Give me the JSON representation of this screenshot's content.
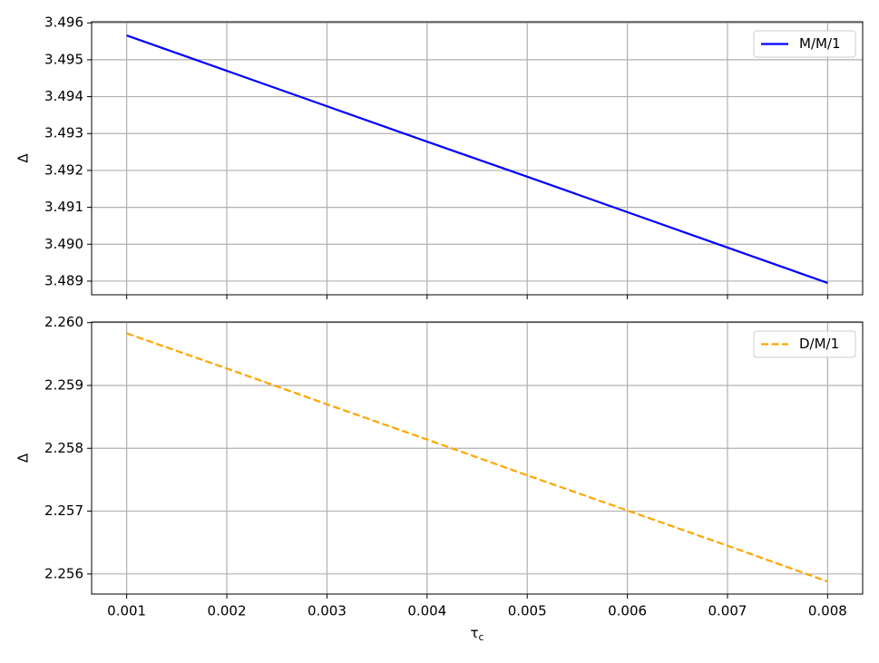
{
  "chart_data": [
    {
      "type": "line",
      "ylabel": "Δ",
      "x": [
        0.001,
        0.002,
        0.003,
        0.004,
        0.005,
        0.006,
        0.007,
        0.008
      ],
      "series": [
        {
          "name": "M/M/1",
          "color": "#0000ff",
          "linestyle": "solid",
          "values": [
            3.49566,
            3.4947,
            3.49374,
            3.49278,
            3.49183,
            3.49087,
            3.48991,
            3.48895
          ]
        }
      ],
      "xlim": [
        0.00065,
        0.00835
      ],
      "xticks": [
        0.001,
        0.002,
        0.003,
        0.004,
        0.005,
        0.006,
        0.007,
        0.008
      ],
      "ylim": [
        3.48863,
        3.49603
      ],
      "yticks": [
        3.489,
        {
          "value": 3.49,
          "label": "3.490"
        },
        3.491,
        3.492,
        3.493,
        3.494,
        3.495,
        3.496
      ],
      "grid": true,
      "legend": "upper right",
      "show_xtick_labels": false
    },
    {
      "type": "line",
      "ylabel": "Δ",
      "xlabel": [
        "τ",
        "c"
      ],
      "x": [
        0.001,
        0.002,
        0.003,
        0.004,
        0.005,
        0.006,
        0.007,
        0.008
      ],
      "series": [
        {
          "name": "D/M/1",
          "color": "#ffa500",
          "linestyle": "dashed",
          "values": [
            2.25983,
            2.25927,
            2.2587,
            2.25814,
            2.25757,
            2.25701,
            2.25645,
            2.25588
          ]
        }
      ],
      "xlim": [
        0.00065,
        0.00835
      ],
      "xticks": [
        0.001,
        0.002,
        0.003,
        0.004,
        0.005,
        0.006,
        0.007,
        0.008
      ],
      "ylim": [
        2.25568,
        2.26001
      ],
      "yticks": [
        2.256,
        2.257,
        2.258,
        2.259,
        {
          "value": 2.26,
          "label": "2.260"
        }
      ],
      "grid": true,
      "legend": "upper right",
      "show_xtick_labels": true
    }
  ]
}
